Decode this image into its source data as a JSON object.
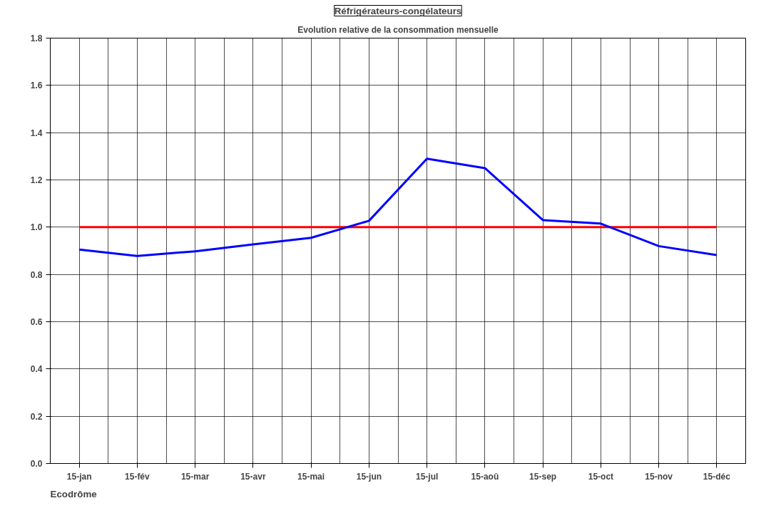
{
  "chart_data": {
    "type": "line",
    "title": "Réfrigérateurs-congélateurs",
    "subtitle": "Evolution relative de la consommation mensuelle",
    "categories": [
      "15-jan",
      "15-fév",
      "15-mar",
      "15-avr",
      "15-mai",
      "15-jun",
      "15-jul",
      "15-aoû",
      "15-sep",
      "15-oct",
      "15-nov",
      "15-déc"
    ],
    "series": [
      {
        "color": "#0000ff",
        "values": [
          0.905,
          0.878,
          0.898,
          0.927,
          0.955,
          1.027,
          1.29,
          1.25,
          1.03,
          1.015,
          0.92,
          0.882
        ]
      }
    ],
    "ref_lines": [
      {
        "axis": "y",
        "value": 1.0,
        "color": "#ff0000"
      }
    ],
    "ylim": [
      0,
      1.8
    ],
    "yticks": [
      {
        "value": 0,
        "label": "0.0"
      },
      {
        "value": 0.2,
        "label": "0.2"
      },
      {
        "value": 0.4,
        "label": "0.4"
      },
      {
        "value": 0.6,
        "label": "0.6"
      },
      {
        "value": 0.8,
        "label": "0.8"
      },
      {
        "value": 1.0,
        "label": "1.0"
      },
      {
        "value": 1.2,
        "label": "1.2"
      },
      {
        "value": 1.4,
        "label": "1.4"
      },
      {
        "value": 1.6,
        "label": "1.6"
      },
      {
        "value": 1.8,
        "label": "1.8"
      }
    ],
    "grid": true,
    "marker": "none",
    "line_style": "solid",
    "annotations": [
      "Ecodrôme"
    ]
  }
}
